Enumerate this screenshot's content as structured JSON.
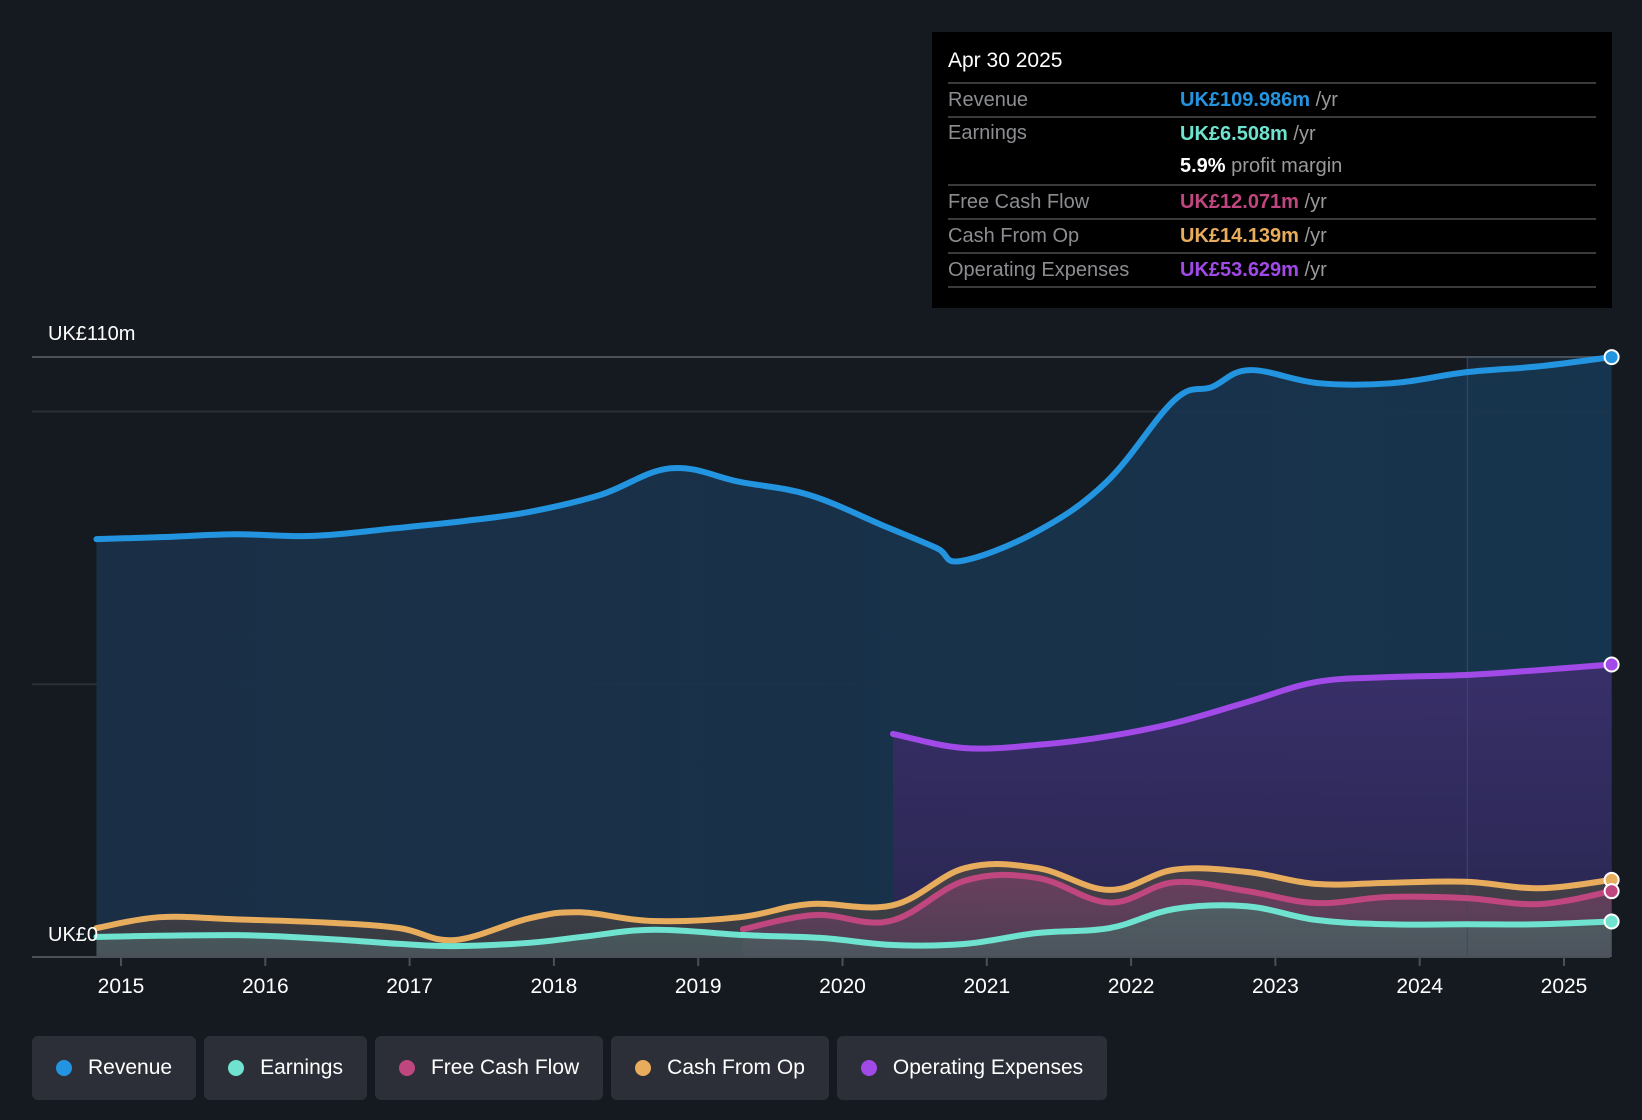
{
  "colors": {
    "background": "#151a21",
    "revenue": "#2394e0",
    "earnings": "#6fe3cf",
    "free_cash_flow": "#c0467f",
    "cash_from_op": "#e8ac5d",
    "operating_expenses": "#a24ae8",
    "gridline": "#2a2f37",
    "axis": "#4a4f58"
  },
  "tooltip": {
    "date": "Apr 30 2025",
    "rows": [
      {
        "label": "Revenue",
        "value": "UK£109.986m",
        "unit": "/yr",
        "color": "#2394e0"
      },
      {
        "label": "Earnings",
        "value": "UK£6.508m",
        "unit": "/yr",
        "color": "#6fe3cf",
        "extra_value": "5.9%",
        "extra_text": "profit margin"
      },
      {
        "label": "Free Cash Flow",
        "value": "UK£12.071m",
        "unit": "/yr",
        "color": "#c0467f"
      },
      {
        "label": "Cash From Op",
        "value": "UK£14.139m",
        "unit": "/yr",
        "color": "#e8ac5d"
      },
      {
        "label": "Operating Expenses",
        "value": "UK£53.629m",
        "unit": "/yr",
        "color": "#a24ae8"
      }
    ]
  },
  "legend": [
    {
      "label": "Revenue",
      "color": "#2394e0"
    },
    {
      "label": "Earnings",
      "color": "#6fe3cf"
    },
    {
      "label": "Free Cash Flow",
      "color": "#c0467f"
    },
    {
      "label": "Cash From Op",
      "color": "#e8ac5d"
    },
    {
      "label": "Operating Expenses",
      "color": "#a24ae8"
    }
  ],
  "chart_data": {
    "type": "area",
    "title": "",
    "xlabel": "",
    "ylabel": "",
    "currency_unit": "UK£ millions",
    "y_tick_labels": [
      {
        "value": 110,
        "label": "UK£110m"
      },
      {
        "value": 0,
        "label": "UK£0"
      }
    ],
    "gridlines": [
      110,
      100,
      50,
      0
    ],
    "ylim": [
      0,
      110
    ],
    "xlim": [
      2014.83,
      2025.33
    ],
    "x_ticks": [
      "2015",
      "2016",
      "2017",
      "2018",
      "2019",
      "2020",
      "2021",
      "2022",
      "2023",
      "2024",
      "2025"
    ],
    "x_tick_values": [
      2015,
      2016,
      2017,
      2018,
      2019,
      2020,
      2021,
      2022,
      2023,
      2024,
      2025
    ],
    "highlight_range": [
      2024.33,
      2025.33
    ],
    "legend_position": "bottom-left",
    "series": [
      {
        "name": "Revenue",
        "key": "revenue",
        "points": [
          [
            2014.83,
            76.6
          ],
          [
            2015.3,
            77.0
          ],
          [
            2015.8,
            77.5
          ],
          [
            2016.33,
            77.2
          ],
          [
            2016.9,
            78.6
          ],
          [
            2017.4,
            80.0
          ],
          [
            2017.83,
            81.6
          ],
          [
            2018.32,
            84.7
          ],
          [
            2018.81,
            89.6
          ],
          [
            2019.29,
            87.1
          ],
          [
            2019.77,
            84.7
          ],
          [
            2020.29,
            79.0
          ],
          [
            2020.65,
            75.0
          ],
          [
            2020.82,
            72.6
          ],
          [
            2021.34,
            77.9
          ],
          [
            2021.83,
            87.1
          ],
          [
            2022.3,
            102.1
          ],
          [
            2022.56,
            104.5
          ],
          [
            2022.82,
            107.6
          ],
          [
            2023.3,
            105.2
          ],
          [
            2023.81,
            105.2
          ],
          [
            2024.32,
            107.2
          ],
          [
            2024.83,
            108.3
          ],
          [
            2025.33,
            109.986
          ]
        ]
      },
      {
        "name": "Operating Expenses",
        "key": "operating_expenses",
        "points": [
          [
            2020.35,
            40.9
          ],
          [
            2020.85,
            38.3
          ],
          [
            2021.4,
            39.0
          ],
          [
            2021.85,
            40.5
          ],
          [
            2022.3,
            42.9
          ],
          [
            2022.8,
            46.7
          ],
          [
            2023.28,
            50.4
          ],
          [
            2023.78,
            51.3
          ],
          [
            2024.32,
            51.7
          ],
          [
            2024.83,
            52.6
          ],
          [
            2025.33,
            53.629
          ]
        ]
      },
      {
        "name": "Cash From Op",
        "key": "cash_from_op",
        "points": [
          [
            2014.83,
            5.3
          ],
          [
            2015.27,
            7.3
          ],
          [
            2015.8,
            6.9
          ],
          [
            2016.43,
            6.3
          ],
          [
            2016.93,
            5.3
          ],
          [
            2017.31,
            3.1
          ],
          [
            2017.83,
            7.1
          ],
          [
            2018.18,
            8.2
          ],
          [
            2018.68,
            6.6
          ],
          [
            2019.29,
            7.3
          ],
          [
            2019.77,
            9.7
          ],
          [
            2020.35,
            9.5
          ],
          [
            2020.85,
            16.3
          ],
          [
            2021.35,
            16.3
          ],
          [
            2021.85,
            12.3
          ],
          [
            2022.3,
            16.0
          ],
          [
            2022.8,
            15.6
          ],
          [
            2023.28,
            13.4
          ],
          [
            2023.78,
            13.6
          ],
          [
            2024.32,
            13.8
          ],
          [
            2024.83,
            12.6
          ],
          [
            2025.33,
            14.139
          ]
        ]
      },
      {
        "name": "Free Cash Flow",
        "key": "free_cash_flow",
        "points": [
          [
            2019.31,
            5.1
          ],
          [
            2019.81,
            7.7
          ],
          [
            2020.33,
            6.6
          ],
          [
            2020.85,
            14.0
          ],
          [
            2021.35,
            14.5
          ],
          [
            2021.85,
            10.0
          ],
          [
            2022.3,
            13.7
          ],
          [
            2022.8,
            12.1
          ],
          [
            2023.28,
            9.9
          ],
          [
            2023.78,
            11.0
          ],
          [
            2024.32,
            10.8
          ],
          [
            2024.83,
            9.7
          ],
          [
            2025.33,
            12.071
          ]
        ]
      },
      {
        "name": "Earnings",
        "key": "earnings",
        "points": [
          [
            2014.83,
            3.7
          ],
          [
            2015.8,
            4.0
          ],
          [
            2016.43,
            3.3
          ],
          [
            2016.93,
            2.4
          ],
          [
            2017.31,
            2.0
          ],
          [
            2017.83,
            2.6
          ],
          [
            2018.2,
            3.7
          ],
          [
            2018.69,
            5.0
          ],
          [
            2019.33,
            4.0
          ],
          [
            2019.85,
            3.5
          ],
          [
            2020.35,
            2.2
          ],
          [
            2020.85,
            2.4
          ],
          [
            2021.35,
            4.4
          ],
          [
            2021.85,
            5.3
          ],
          [
            2022.3,
            8.8
          ],
          [
            2022.8,
            9.3
          ],
          [
            2023.28,
            6.8
          ],
          [
            2023.78,
            6.0
          ],
          [
            2024.32,
            6.0
          ],
          [
            2024.83,
            6.0
          ],
          [
            2025.33,
            6.508
          ]
        ]
      }
    ]
  }
}
